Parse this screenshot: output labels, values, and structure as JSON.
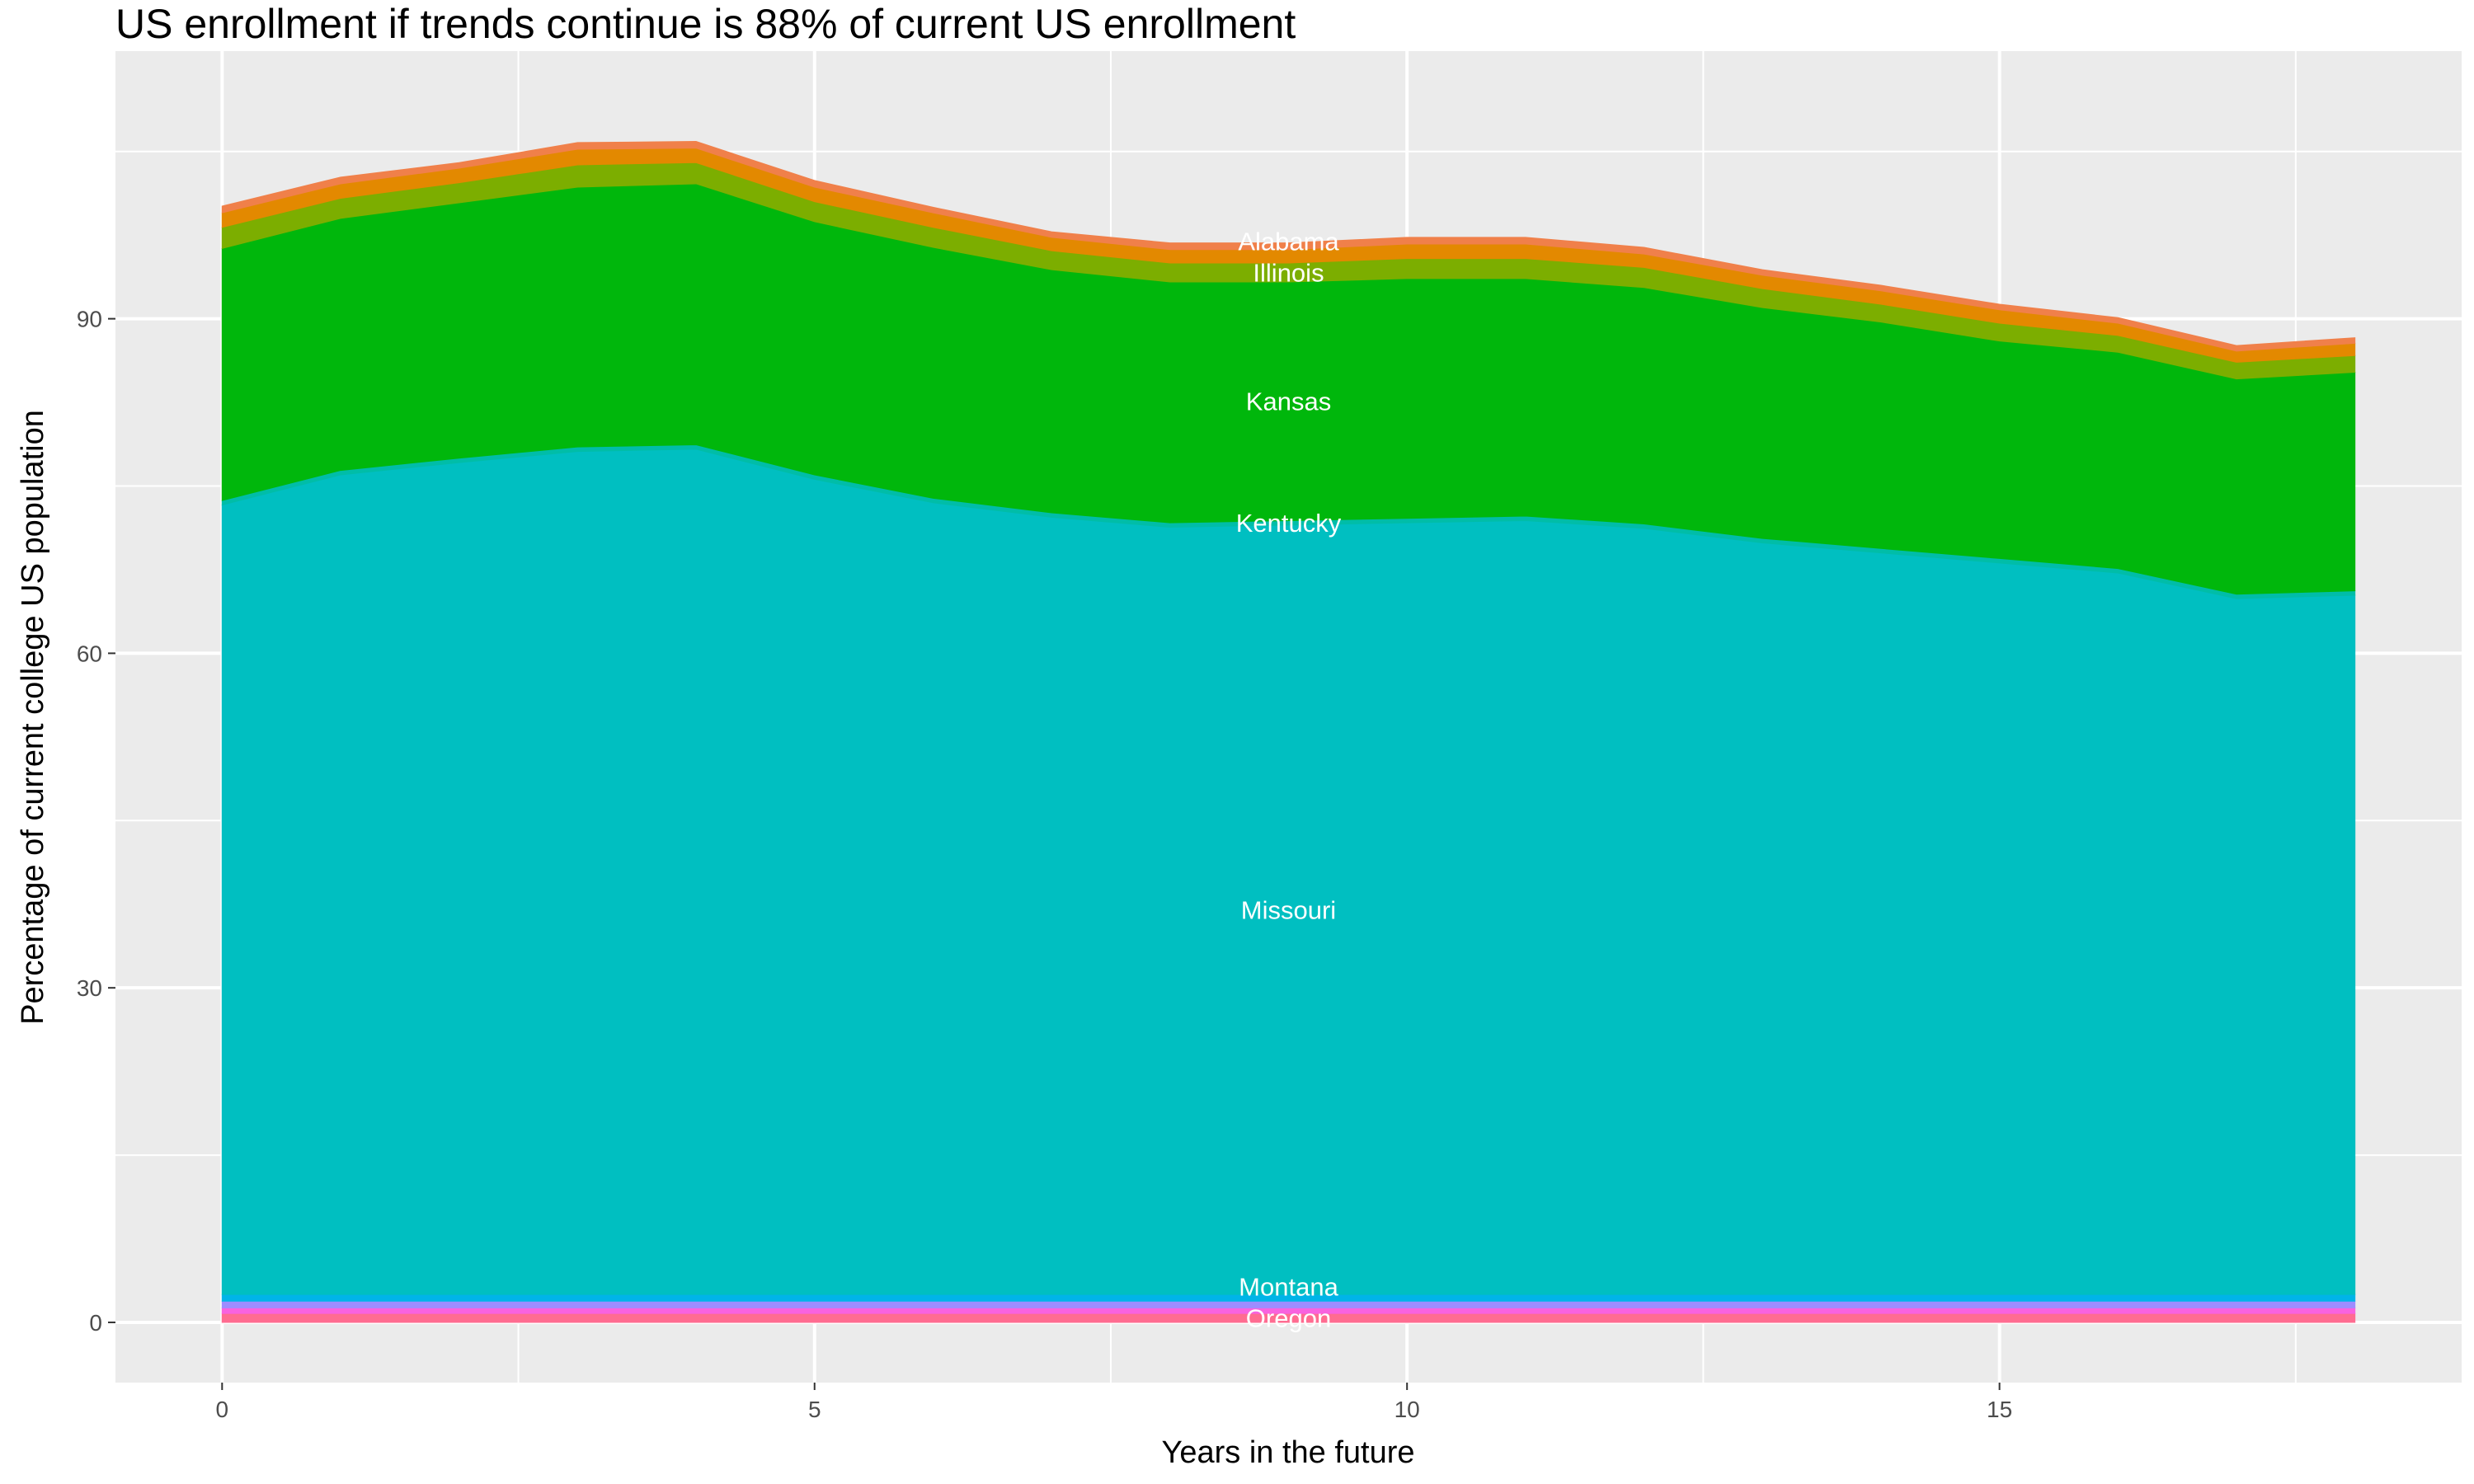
{
  "chart_data": {
    "type": "area",
    "stacked": true,
    "title": "US enrollment if trends continue is 88% of current US enrollment",
    "xlabel": "Years in the future",
    "ylabel": "Percentage of current college US population",
    "xlim": [
      -0.9,
      18.9
    ],
    "ylim": [
      -5.4,
      114
    ],
    "x_ticks": [
      0,
      5,
      10,
      15
    ],
    "y_ticks": [
      0,
      30,
      60,
      90
    ],
    "grid": true,
    "legend": "none",
    "label_x": 9,
    "x": [
      0,
      1,
      2,
      3,
      4,
      5,
      6,
      7,
      8,
      9,
      10,
      11,
      12,
      13,
      14,
      15,
      16,
      17,
      18
    ],
    "series": [
      {
        "name": "Oregon",
        "color": "#FF6C91",
        "labeled": true,
        "values": [
          0.8,
          0.8,
          0.8,
          0.8,
          0.8,
          0.8,
          0.8,
          0.8,
          0.8,
          0.8,
          0.8,
          0.8,
          0.8,
          0.8,
          0.8,
          0.8,
          0.8,
          0.8,
          0.8
        ]
      },
      {
        "color": "#F863DF",
        "values": [
          0.5,
          0.5,
          0.5,
          0.5,
          0.5,
          0.5,
          0.5,
          0.5,
          0.5,
          0.5,
          0.5,
          0.5,
          0.5,
          0.5,
          0.5,
          0.5,
          0.5,
          0.5,
          0.5
        ]
      },
      {
        "color": "#9E8CFF",
        "values": [
          0.6,
          0.6,
          0.6,
          0.6,
          0.6,
          0.6,
          0.6,
          0.6,
          0.6,
          0.6,
          0.6,
          0.6,
          0.6,
          0.6,
          0.6,
          0.6,
          0.6,
          0.6,
          0.6
        ]
      },
      {
        "name": "Montana",
        "color": "#00B4E8",
        "labeled": true,
        "values": [
          0.6,
          0.6,
          0.6,
          0.6,
          0.6,
          0.6,
          0.6,
          0.6,
          0.6,
          0.6,
          0.6,
          0.6,
          0.6,
          0.6,
          0.6,
          0.6,
          0.6,
          0.6,
          0.6
        ]
      },
      {
        "name": "Missouri",
        "color": "#00BFC1",
        "labeled": true,
        "values": [
          70.8,
          73.5,
          74.6,
          75.6,
          75.8,
          73.1,
          71.0,
          69.7,
          68.8,
          69.0,
          69.2,
          69.4,
          68.7,
          67.4,
          66.5,
          65.6,
          64.7,
          62.4,
          62.7
        ]
      },
      {
        "name": "Kentucky",
        "color": "#00BDA8",
        "labeled": true,
        "values": [
          0.4,
          0.4,
          0.4,
          0.4,
          0.4,
          0.4,
          0.4,
          0.4,
          0.4,
          0.4,
          0.4,
          0.4,
          0.4,
          0.4,
          0.4,
          0.4,
          0.4,
          0.4,
          0.4
        ]
      },
      {
        "name": "Kansas",
        "color": "#00B70C",
        "labeled": true,
        "values": [
          22.6,
          22.6,
          22.9,
          23.3,
          23.4,
          22.7,
          22.5,
          21.8,
          21.6,
          21.4,
          21.5,
          21.3,
          21.2,
          20.7,
          20.3,
          19.5,
          19.4,
          19.3,
          19.6
        ]
      },
      {
        "name": "Illinois",
        "color": "#7CAE00",
        "labeled": true,
        "values": [
          1.9,
          1.8,
          1.8,
          2.0,
          1.9,
          1.8,
          1.8,
          1.7,
          1.7,
          1.7,
          1.8,
          1.8,
          1.8,
          1.7,
          1.6,
          1.6,
          1.5,
          1.5,
          1.5
        ]
      },
      {
        "color": "#E38900",
        "values": [
          1.3,
          1.3,
          1.3,
          1.4,
          1.3,
          1.3,
          1.3,
          1.2,
          1.2,
          1.2,
          1.3,
          1.3,
          1.2,
          1.2,
          1.2,
          1.2,
          1.1,
          1.0,
          1.1
        ]
      },
      {
        "name": "Alabama",
        "color": "#F0804A",
        "labeled": true,
        "values": [
          0.6,
          0.6,
          0.5,
          0.6,
          0.6,
          0.6,
          0.5,
          0.5,
          0.6,
          0.6,
          0.6,
          0.6,
          0.6,
          0.5,
          0.5,
          0.5,
          0.5,
          0.5,
          0.5
        ]
      }
    ],
    "panel_background": "#EBEBEB",
    "grid_color": "#FFFFFF"
  }
}
